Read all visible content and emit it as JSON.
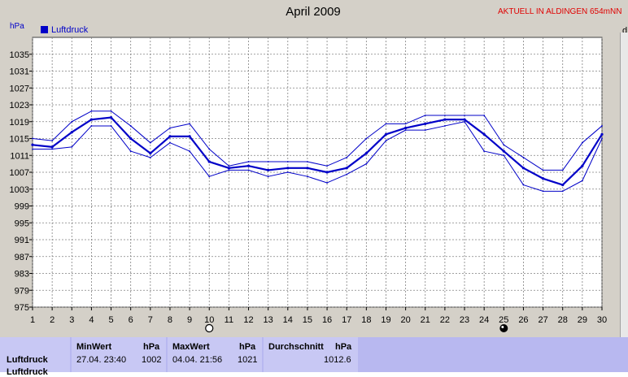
{
  "header": {
    "title": "April 2009",
    "aktuell": "AKTUELL IN ALDINGEN 654mNN",
    "unit": "hPa",
    "clipped_label": "d"
  },
  "legend": {
    "label": "Luftdruck",
    "color": "#0000c8"
  },
  "chart_data": {
    "type": "line",
    "title": "April 2009",
    "ylabel": "hPa",
    "xlabel": "",
    "ylim": [
      975,
      1039
    ],
    "xlim": [
      1,
      30
    ],
    "yticks": [
      975,
      979,
      983,
      987,
      991,
      995,
      999,
      1003,
      1007,
      1011,
      1015,
      1019,
      1023,
      1027,
      1031,
      1035
    ],
    "x": [
      1,
      2,
      3,
      4,
      5,
      6,
      7,
      8,
      9,
      10,
      11,
      12,
      13,
      14,
      15,
      16,
      17,
      18,
      19,
      20,
      21,
      22,
      23,
      24,
      25,
      26,
      27,
      28,
      29,
      30
    ],
    "grid": true,
    "legend_position": "top-left",
    "series": [
      {
        "name": "Luftdruck",
        "role": "mean",
        "values": [
          1013.5,
          1013,
          1016.5,
          1019.5,
          1020,
          1015,
          1011.5,
          1015.5,
          1015.5,
          1009.5,
          1008,
          1008.5,
          1007.5,
          1008,
          1008,
          1007,
          1008,
          1011.5,
          1016,
          1017.5,
          1018.5,
          1019.5,
          1019.5,
          1016,
          1012,
          1008,
          1005.5,
          1004,
          1008.5,
          1016
        ]
      },
      {
        "role": "max",
        "values": [
          1015,
          1014.5,
          1019,
          1021.5,
          1021.5,
          1018,
          1014,
          1017.5,
          1018.5,
          1012.5,
          1008.5,
          1009.5,
          1009.5,
          1009.5,
          1009.5,
          1008.5,
          1010.5,
          1015,
          1018.5,
          1018.5,
          1020.5,
          1020.5,
          1020.5,
          1020.5,
          1013.5,
          1010.5,
          1007.5,
          1007.5,
          1014,
          1018
        ]
      },
      {
        "role": "min",
        "values": [
          1012.5,
          1012.5,
          1013,
          1018,
          1018,
          1012,
          1010.5,
          1014,
          1012,
          1006,
          1007.5,
          1007.5,
          1006,
          1007,
          1006,
          1004.5,
          1006.5,
          1009,
          1014.5,
          1017,
          1017,
          1018,
          1019,
          1012,
          1011,
          1004,
          1002.5,
          1002.5,
          1005,
          1015
        ]
      }
    ],
    "moon_markers": [
      {
        "day": 10,
        "phase": "full"
      },
      {
        "day": 25,
        "phase": "new"
      }
    ],
    "colors": {
      "plot_bg": "#ffffff",
      "grid": "#808080",
      "frame_bg": "#d4d0c8",
      "axis_text": "#0000c8"
    }
  },
  "stats": {
    "row_label": "Luftdruck",
    "row_label_clipped": "Luftdruck",
    "min": {
      "header": "MinWert",
      "unit": "hPa",
      "time": "27.04.  23:40",
      "value": "1002"
    },
    "max": {
      "header": "MaxWert",
      "unit": "hPa",
      "time": "04.04.  21:56",
      "value": "1021"
    },
    "avg": {
      "header": "Durchschnitt",
      "unit": "hPa",
      "value": "1012.6"
    }
  }
}
